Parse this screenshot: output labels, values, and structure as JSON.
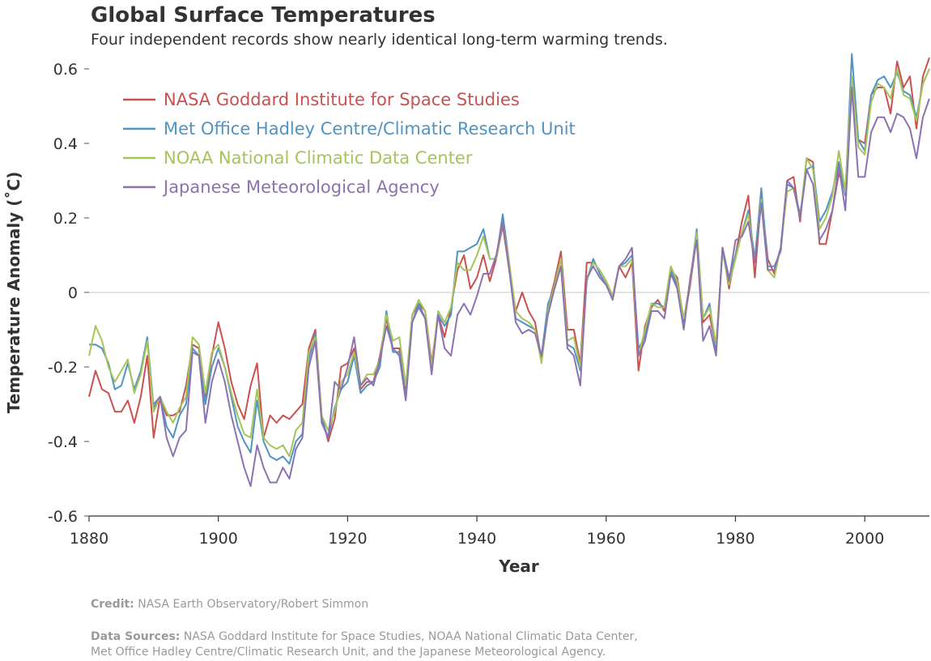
{
  "header": {
    "title": "Global Surface Temperatures",
    "subtitle": "Four independent records show nearly identical long-term warming trends."
  },
  "footer": {
    "credit_label": "Credit:",
    "credit_text": "NASA Earth Observatory/Robert Simmon",
    "sources_label": "Data Sources:",
    "sources_line1": "NASA Goddard Institute for Space Studies, NOAA National Climatic Data Center,",
    "sources_line2": "Met Office Hadley Centre/Climatic Research Unit, and the Japanese Meteorological Agency."
  },
  "chart_data": {
    "type": "line",
    "xlabel": "Year",
    "ylabel": "Temperature Anomaly (˚C)",
    "xlim": [
      1880,
      2010
    ],
    "ylim": [
      -0.6,
      0.6
    ],
    "xticks": [
      1880,
      1900,
      1920,
      1940,
      1960,
      1980,
      2000
    ],
    "yticks": [
      -0.6,
      -0.4,
      -0.2,
      0,
      0.2,
      0.4,
      0.6
    ],
    "ytick_labels": [
      "-0.6",
      "-0.4",
      "-0.2",
      "0",
      "0.2",
      "0.4",
      "0.6"
    ],
    "grid": false,
    "zero_line": true,
    "legend_position": "top-left",
    "x_start": 1880,
    "series": [
      {
        "name": "NASA Goddard Institute for Space Studies",
        "color": "#c9524f",
        "values": [
          -0.28,
          -0.21,
          -0.26,
          -0.27,
          -0.32,
          -0.32,
          -0.29,
          -0.35,
          -0.28,
          -0.17,
          -0.39,
          -0.28,
          -0.33,
          -0.33,
          -0.32,
          -0.25,
          -0.14,
          -0.15,
          -0.28,
          -0.17,
          -0.08,
          -0.15,
          -0.24,
          -0.3,
          -0.34,
          -0.25,
          -0.19,
          -0.39,
          -0.33,
          -0.35,
          -0.33,
          -0.34,
          -0.32,
          -0.3,
          -0.15,
          -0.1,
          -0.33,
          -0.4,
          -0.34,
          -0.2,
          -0.19,
          -0.15,
          -0.26,
          -0.24,
          -0.24,
          -0.17,
          -0.07,
          -0.15,
          -0.15,
          -0.27,
          -0.06,
          -0.03,
          -0.05,
          -0.19,
          -0.06,
          -0.12,
          -0.04,
          0.06,
          0.1,
          0.01,
          0.04,
          0.1,
          0.03,
          0.09,
          0.18,
          0.06,
          -0.05,
          0.0,
          -0.05,
          -0.08,
          -0.18,
          -0.04,
          0.03,
          0.11,
          -0.1,
          -0.1,
          -0.19,
          0.08,
          0.08,
          0.06,
          0.03,
          -0.01,
          0.07,
          0.04,
          0.08,
          -0.21,
          -0.09,
          -0.04,
          -0.02,
          -0.05,
          0.06,
          0.04,
          -0.08,
          0.02,
          0.15,
          -0.08,
          -0.06,
          -0.15,
          0.12,
          0.01,
          0.1,
          0.19,
          0.26,
          0.04,
          0.26,
          0.09,
          0.05,
          0.12,
          0.3,
          0.31,
          0.19,
          0.36,
          0.35,
          0.13,
          0.13,
          0.22,
          0.32,
          0.27,
          0.57,
          0.41,
          0.4,
          0.53,
          0.55,
          0.55,
          0.48,
          0.62,
          0.55,
          0.58,
          0.44,
          0.58,
          0.63
        ]
      },
      {
        "name": "Met Office Hadley Centre/Climatic Research Unit",
        "color": "#4f94c3",
        "values": [
          -0.14,
          -0.14,
          -0.15,
          -0.19,
          -0.26,
          -0.25,
          -0.19,
          -0.26,
          -0.21,
          -0.12,
          -0.31,
          -0.28,
          -0.36,
          -0.39,
          -0.33,
          -0.3,
          -0.15,
          -0.17,
          -0.3,
          -0.2,
          -0.15,
          -0.2,
          -0.28,
          -0.36,
          -0.4,
          -0.43,
          -0.29,
          -0.4,
          -0.44,
          -0.45,
          -0.44,
          -0.46,
          -0.4,
          -0.38,
          -0.18,
          -0.11,
          -0.34,
          -0.39,
          -0.31,
          -0.26,
          -0.24,
          -0.17,
          -0.27,
          -0.25,
          -0.24,
          -0.2,
          -0.05,
          -0.16,
          -0.16,
          -0.28,
          -0.08,
          -0.03,
          -0.07,
          -0.21,
          -0.06,
          -0.09,
          -0.06,
          0.11,
          0.11,
          0.12,
          0.13,
          0.17,
          0.09,
          0.09,
          0.21,
          0.08,
          -0.07,
          -0.08,
          -0.09,
          -0.1,
          -0.17,
          -0.03,
          0.01,
          0.07,
          -0.14,
          -0.15,
          -0.21,
          0.03,
          0.09,
          0.05,
          0.02,
          -0.01,
          0.07,
          0.08,
          0.1,
          -0.15,
          -0.12,
          -0.03,
          -0.03,
          -0.04,
          0.06,
          0.02,
          -0.08,
          0.03,
          0.17,
          -0.07,
          -0.03,
          -0.16,
          0.12,
          0.04,
          0.1,
          0.16,
          0.22,
          0.09,
          0.28,
          0.07,
          0.07,
          0.11,
          0.29,
          0.28,
          0.21,
          0.33,
          0.34,
          0.19,
          0.22,
          0.27,
          0.35,
          0.26,
          0.64,
          0.41,
          0.38,
          0.53,
          0.57,
          0.58,
          0.55,
          0.59,
          0.54,
          0.53,
          0.47,
          0.56,
          0.6
        ]
      },
      {
        "name": "NOAA National Climatic Data Center",
        "color": "#a6c45a",
        "values": [
          -0.17,
          -0.09,
          -0.13,
          -0.2,
          -0.24,
          -0.21,
          -0.18,
          -0.27,
          -0.22,
          -0.13,
          -0.32,
          -0.28,
          -0.32,
          -0.35,
          -0.31,
          -0.28,
          -0.12,
          -0.14,
          -0.27,
          -0.16,
          -0.14,
          -0.2,
          -0.27,
          -0.33,
          -0.38,
          -0.39,
          -0.26,
          -0.39,
          -0.41,
          -0.42,
          -0.41,
          -0.44,
          -0.37,
          -0.35,
          -0.16,
          -0.12,
          -0.33,
          -0.37,
          -0.32,
          -0.24,
          -0.22,
          -0.16,
          -0.25,
          -0.22,
          -0.22,
          -0.18,
          -0.06,
          -0.13,
          -0.12,
          -0.25,
          -0.06,
          -0.02,
          -0.05,
          -0.2,
          -0.05,
          -0.08,
          -0.04,
          0.08,
          0.06,
          0.06,
          0.1,
          0.15,
          0.09,
          0.09,
          0.19,
          0.08,
          -0.05,
          -0.07,
          -0.08,
          -0.1,
          -0.19,
          -0.05,
          0.02,
          0.09,
          -0.13,
          -0.12,
          -0.2,
          0.03,
          0.08,
          0.06,
          0.03,
          -0.01,
          0.07,
          0.07,
          0.09,
          -0.17,
          -0.1,
          -0.03,
          -0.04,
          -0.04,
          0.07,
          0.03,
          -0.07,
          0.03,
          0.16,
          -0.07,
          -0.04,
          -0.14,
          0.11,
          0.02,
          0.09,
          0.16,
          0.21,
          0.08,
          0.25,
          0.06,
          0.04,
          0.12,
          0.27,
          0.28,
          0.2,
          0.36,
          0.33,
          0.17,
          0.2,
          0.26,
          0.38,
          0.27,
          0.58,
          0.39,
          0.37,
          0.51,
          0.56,
          0.55,
          0.52,
          0.6,
          0.53,
          0.52,
          0.46,
          0.56,
          0.6
        ]
      },
      {
        "name": "Japanese Meteorological Agency",
        "color": "#8c72b0",
        "values": [
          null,
          null,
          null,
          null,
          null,
          null,
          null,
          null,
          null,
          null,
          -0.3,
          -0.28,
          -0.39,
          -0.44,
          -0.39,
          -0.37,
          -0.16,
          -0.17,
          -0.35,
          -0.24,
          -0.18,
          -0.24,
          -0.33,
          -0.4,
          -0.47,
          -0.52,
          -0.41,
          -0.47,
          -0.51,
          -0.51,
          -0.47,
          -0.5,
          -0.42,
          -0.39,
          -0.2,
          -0.13,
          -0.35,
          -0.39,
          -0.24,
          -0.26,
          -0.2,
          -0.12,
          -0.25,
          -0.23,
          -0.25,
          -0.18,
          -0.09,
          -0.15,
          -0.17,
          -0.29,
          -0.08,
          -0.04,
          -0.07,
          -0.22,
          -0.06,
          -0.15,
          -0.17,
          -0.06,
          -0.03,
          -0.06,
          -0.01,
          0.05,
          0.05,
          0.1,
          0.19,
          0.06,
          -0.08,
          -0.11,
          -0.1,
          -0.11,
          -0.17,
          -0.06,
          0.01,
          0.07,
          -0.15,
          -0.17,
          -0.25,
          0.04,
          0.07,
          0.04,
          0.02,
          -0.02,
          0.07,
          0.09,
          0.12,
          -0.17,
          -0.13,
          -0.05,
          -0.05,
          -0.07,
          0.05,
          0.01,
          -0.1,
          0.04,
          0.14,
          -0.13,
          -0.09,
          -0.17,
          0.12,
          0.03,
          0.14,
          0.15,
          0.19,
          0.08,
          0.24,
          0.06,
          0.06,
          0.12,
          0.3,
          0.28,
          0.2,
          0.33,
          0.29,
          0.14,
          0.17,
          0.22,
          0.34,
          0.22,
          0.55,
          0.31,
          0.31,
          0.43,
          0.47,
          0.47,
          0.43,
          0.48,
          0.47,
          0.44,
          0.36,
          0.47,
          0.52
        ]
      }
    ]
  }
}
